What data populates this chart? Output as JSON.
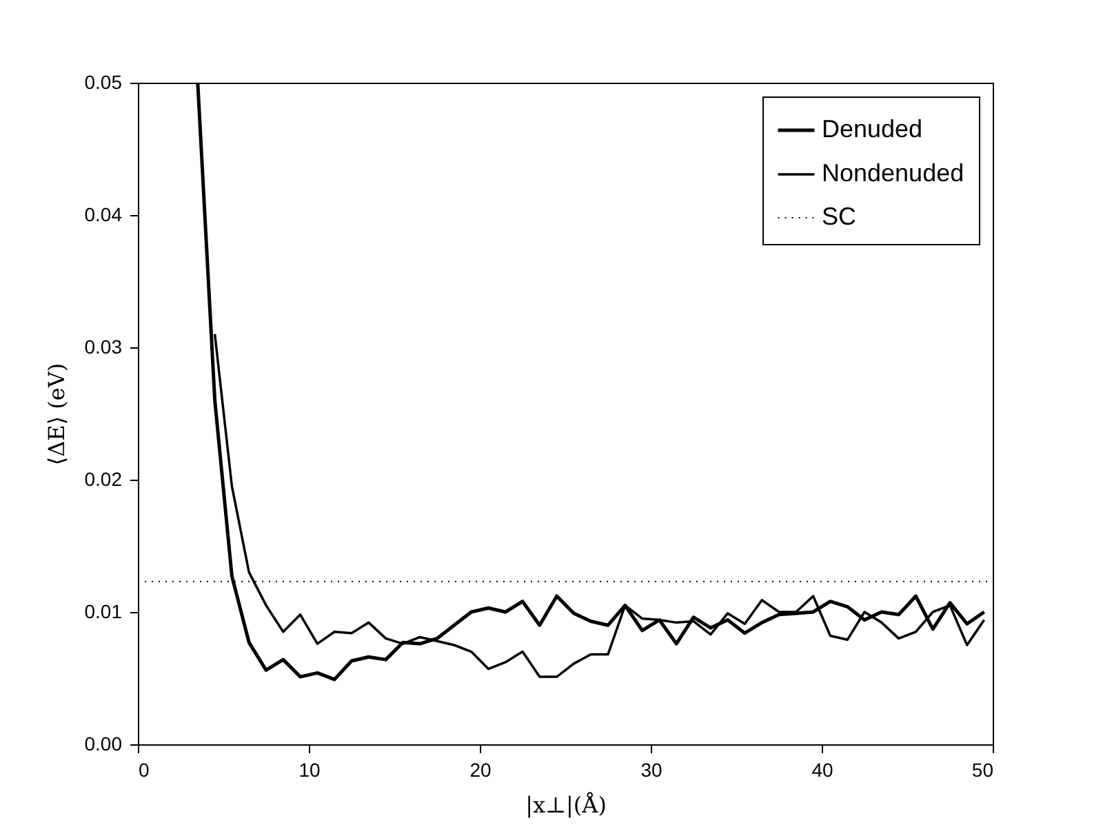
{
  "chart_data": {
    "type": "line",
    "xlabel": "|x⊥|(Å)",
    "ylabel": "⟨ΔE⟩ (eV)",
    "xlim": [
      0,
      50
    ],
    "ylim": [
      0,
      0.05
    ],
    "xticks": [
      0,
      10,
      20,
      30,
      40,
      50
    ],
    "yticks": [
      {
        "value": 0,
        "label": "0.00"
      },
      {
        "value": 0.01,
        "label": "0.01"
      },
      {
        "value": 0.02,
        "label": "0.02"
      },
      {
        "value": 0.03,
        "label": "0.03"
      },
      {
        "value": 0.04,
        "label": "0.04"
      },
      {
        "value": 0.05,
        "label": "0.05"
      }
    ],
    "x": [
      3.5,
      4.5,
      5.5,
      6.5,
      7.5,
      8.5,
      9.5,
      10.5,
      11.5,
      12.5,
      13.5,
      14.5,
      15.5,
      16.5,
      17.5,
      18.5,
      19.5,
      20.5,
      21.5,
      22.5,
      23.5,
      24.5,
      25.5,
      26.5,
      27.5,
      28.5,
      29.5,
      30.5,
      31.5,
      32.5,
      33.5,
      34.5,
      35.5,
      36.5,
      37.5,
      38.5,
      39.5,
      40.5,
      41.5,
      42.5,
      43.5,
      44.5,
      45.5,
      46.5,
      47.5,
      48.5,
      49.5
    ],
    "series": [
      {
        "name": "Denuded",
        "color": "#000000",
        "values": [
          0.05,
          0.026,
          0.0127,
          0.0077,
          0.0056,
          0.0064,
          0.0051,
          0.0054,
          0.0049,
          0.0063,
          0.0066,
          0.0064,
          0.0077,
          0.0076,
          0.008,
          0.009,
          0.01,
          0.0103,
          0.01,
          0.0108,
          0.009,
          0.0112,
          0.0099,
          0.0093,
          0.009,
          0.0105,
          0.0086,
          0.0094,
          0.0076,
          0.0096,
          0.0088,
          0.0094,
          0.0084,
          0.0092,
          0.0098,
          0.0099,
          0.01,
          0.0108,
          0.0104,
          0.0094,
          0.01,
          0.0098,
          0.0112,
          0.0087,
          0.0107,
          0.0091,
          0.01
        ]
      },
      {
        "name": "Nondenuded",
        "color": "#000000",
        "values": [
          null,
          0.031,
          0.0195,
          0.013,
          0.0105,
          0.0085,
          0.0098,
          0.0076,
          0.0085,
          0.0084,
          0.0092,
          0.008,
          0.0076,
          0.0081,
          0.0078,
          0.0075,
          0.007,
          0.0057,
          0.0062,
          0.007,
          0.0051,
          0.0051,
          0.0061,
          0.0068,
          0.0068,
          0.0105,
          0.0095,
          0.0094,
          0.0092,
          0.0093,
          0.0083,
          0.0099,
          0.0091,
          0.0109,
          0.01,
          0.01,
          0.0112,
          0.0082,
          0.0079,
          0.01,
          0.0092,
          0.008,
          0.0085,
          0.01,
          0.0105,
          0.0075,
          0.0094
        ]
      }
    ],
    "ref_lines": [
      {
        "axis": "y",
        "value": 0.0123,
        "label": "SC",
        "color": "#000000",
        "line_style": "dotted"
      }
    ],
    "grid": false,
    "legend": "top right",
    "marker": "none",
    "line_style": "solid"
  }
}
